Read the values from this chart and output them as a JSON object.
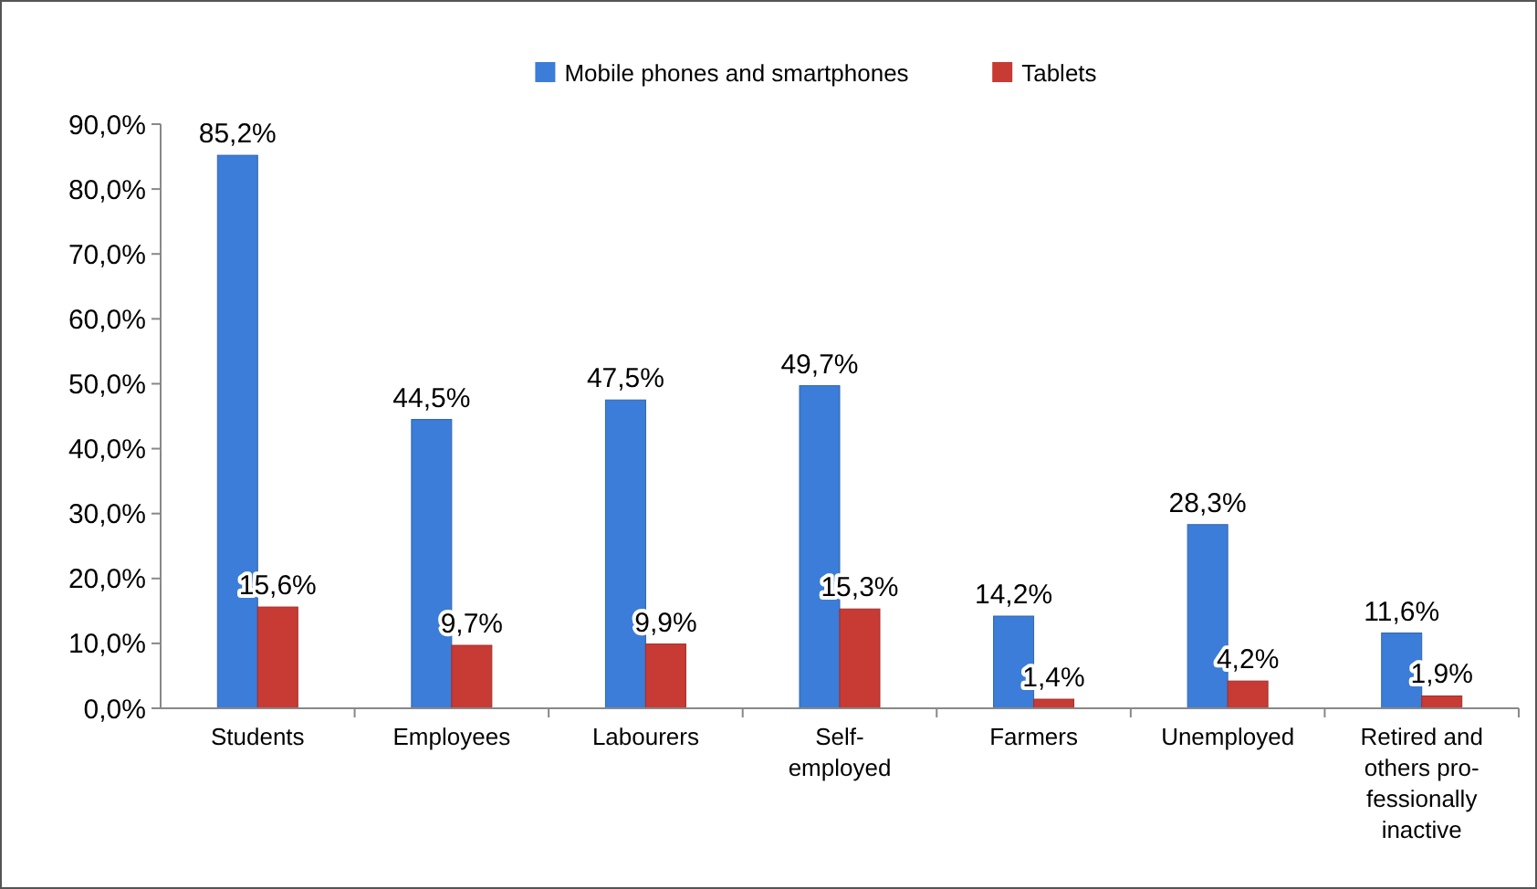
{
  "chart_data": {
    "type": "bar",
    "categories": [
      "Students",
      "Employees",
      "Labourers",
      "Self-\nemployed",
      "Farmers",
      "Unemployed",
      "Retired and\nothers pro-\nfessionally\ninactive"
    ],
    "series": [
      {
        "name": "Mobile phones and smartphones",
        "color": "#3b7dd8",
        "values": [
          85.2,
          44.5,
          47.5,
          49.7,
          14.2,
          28.3,
          11.6
        ],
        "value_labels": [
          "85,2%",
          "44,5%",
          "47,5%",
          "49,7%",
          "14,2%",
          "28,3%",
          "11,6%"
        ]
      },
      {
        "name": "Tablets",
        "color": "#c83a34",
        "values": [
          15.6,
          9.7,
          9.9,
          15.3,
          1.4,
          4.2,
          1.9
        ],
        "value_labels": [
          "15,6%",
          "9,7%",
          "9,9%",
          "15,3%",
          "1,4%",
          "4,2%",
          "1,9%"
        ]
      }
    ],
    "ylim": [
      0,
      90
    ],
    "yticks": [
      {
        "value": 0,
        "label": "0,0%"
      },
      {
        "value": 10,
        "label": "10,0%"
      },
      {
        "value": 20,
        "label": "20,0%"
      },
      {
        "value": 30,
        "label": "30,0%"
      },
      {
        "value": 40,
        "label": "40,0%"
      },
      {
        "value": 50,
        "label": "50,0%"
      },
      {
        "value": 60,
        "label": "60,0%"
      },
      {
        "value": 70,
        "label": "70,0%"
      },
      {
        "value": 80,
        "label": "80,0%"
      },
      {
        "value": 90,
        "label": "90,0%"
      }
    ],
    "legend": "top",
    "grid": false
  }
}
